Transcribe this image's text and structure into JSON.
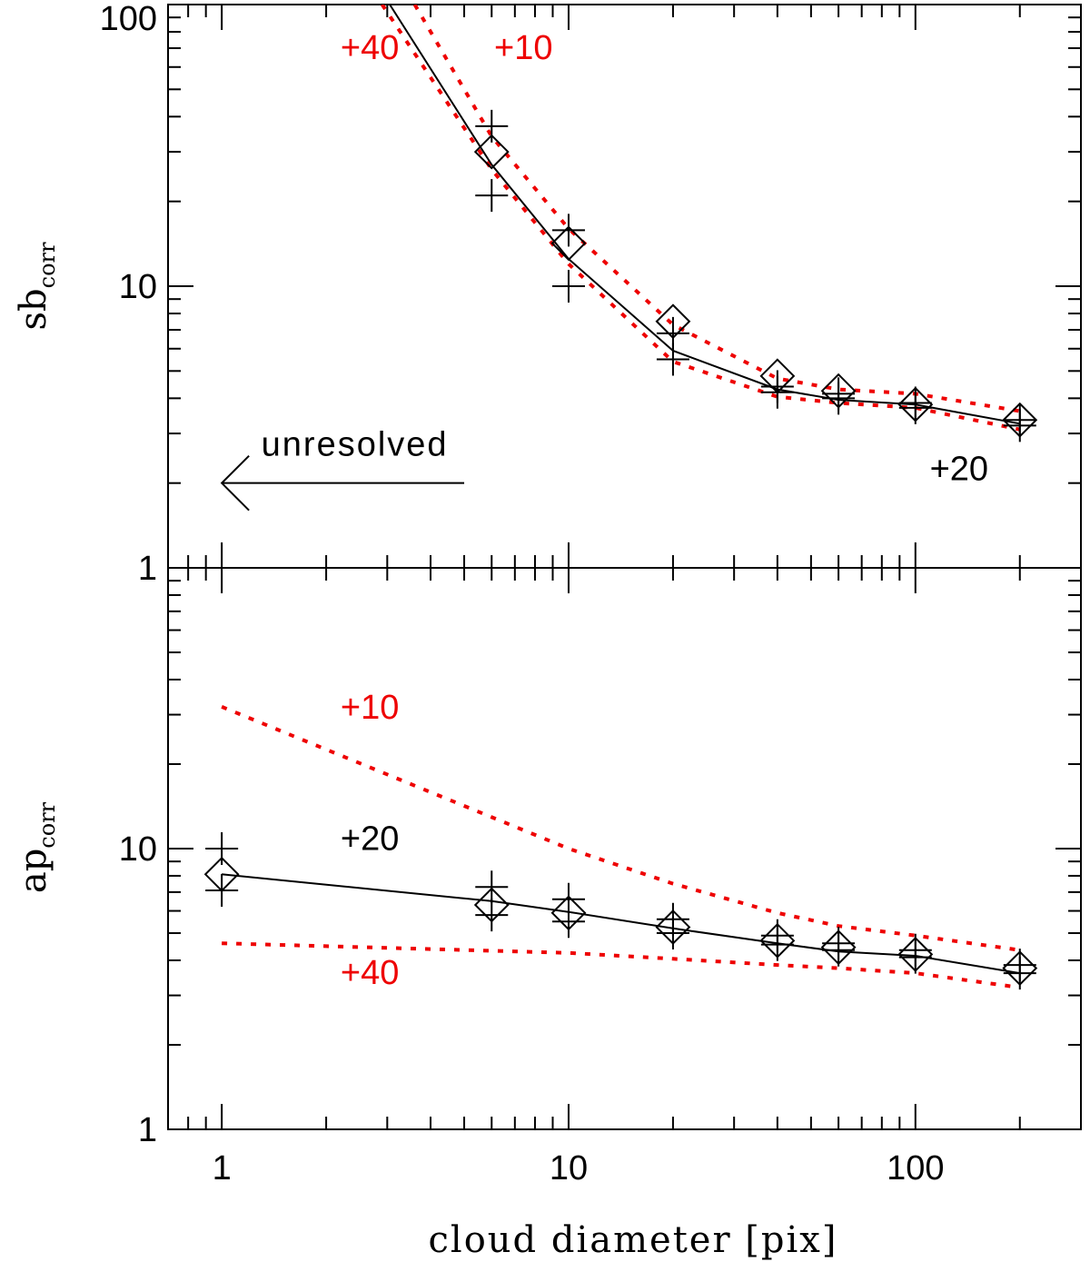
{
  "chart_data": [
    {
      "type": "line",
      "panel": "top",
      "ylabel_main": "sb",
      "ylabel_sub": "corr",
      "xscale": "log",
      "yscale": "log",
      "xlim": [
        0.7,
        300
      ],
      "ylim": [
        1,
        100
      ],
      "y_tick_labels": [
        "100",
        "10",
        "1"
      ],
      "y_ticks": [
        100,
        10,
        1
      ],
      "x": [
        6,
        10,
        20,
        40,
        60,
        100,
        200
      ],
      "diamonds": [
        30,
        14.2,
        7.5,
        4.8,
        4.25,
        3.8,
        3.35
      ],
      "plus_upper": [
        37,
        15.8,
        6.8,
        4.4,
        4.15,
        3.85,
        3.35
      ],
      "plus_lower": [
        21,
        10,
        5.5,
        4.2,
        4.0,
        3.7,
        3.2
      ],
      "series": [
        {
          "name": "+20",
          "style": "solid",
          "color": "#000000",
          "x": [
            3.05,
            6,
            10,
            20,
            40,
            60,
            100,
            200
          ],
          "values": [
            100,
            27,
            12.5,
            5.9,
            4.3,
            3.95,
            3.8,
            3.25
          ]
        },
        {
          "name": "+10",
          "style": "dotted",
          "color": "#ee0000",
          "x": [
            3.6,
            6,
            10,
            20,
            40,
            60,
            100,
            200
          ],
          "values": [
            100,
            34,
            16,
            7.3,
            4.7,
            4.3,
            4.15,
            3.6
          ]
        },
        {
          "name": "+40",
          "style": "dotted",
          "color": "#ee0000",
          "x": [
            2.9,
            6,
            10,
            20,
            40,
            60,
            100,
            200
          ],
          "values": [
            100,
            26,
            12,
            5.4,
            4.05,
            3.85,
            3.7,
            3.1
          ]
        }
      ],
      "annotations": [
        {
          "text": "+40",
          "color": "#ee0000",
          "x": 2.2,
          "y": 64
        },
        {
          "text": "+10",
          "color": "#ee0000",
          "x": 6.1,
          "y": 64
        },
        {
          "text": "+20",
          "color": "#000000",
          "x": 110,
          "y": 2.05
        },
        {
          "text": "unresolved",
          "color": "#000000",
          "x": 1.3,
          "y": 2.5
        }
      ],
      "arrow": {
        "from_x": 5,
        "to_x": 1,
        "y": 2
      }
    },
    {
      "type": "line",
      "panel": "bottom",
      "ylabel_main": "ap",
      "ylabel_sub": "corr",
      "xscale": "log",
      "yscale": "log",
      "xlim": [
        0.7,
        300
      ],
      "ylim": [
        1,
        100
      ],
      "y_tick_labels": [
        "10",
        "1"
      ],
      "y_ticks": [
        10,
        1
      ],
      "x": [
        1,
        6,
        10,
        20,
        40,
        60,
        100,
        200
      ],
      "diamonds": [
        8.1,
        6.3,
        5.9,
        5.25,
        4.7,
        4.45,
        4.2,
        3.75
      ],
      "plus_upper": [
        10,
        7.3,
        6.6,
        5.6,
        4.9,
        4.6,
        4.35,
        3.85
      ],
      "plus_lower": [
        7.1,
        5.8,
        5.5,
        5.0,
        4.55,
        4.35,
        4.1,
        3.6
      ],
      "series": [
        {
          "name": "+20",
          "style": "solid",
          "color": "#000000",
          "x": [
            1,
            6,
            10,
            20,
            40,
            60,
            100,
            200
          ],
          "values": [
            8.1,
            6.5,
            5.95,
            5.2,
            4.6,
            4.3,
            4.15,
            3.6
          ]
        },
        {
          "name": "+10",
          "style": "dotted",
          "color": "#ee0000",
          "x": [
            1,
            10,
            20,
            40,
            60,
            100,
            200
          ],
          "values": [
            32,
            10,
            7.5,
            5.9,
            5.3,
            4.9,
            4.35
          ]
        },
        {
          "name": "+40",
          "style": "dotted",
          "color": "#ee0000",
          "x": [
            1,
            10,
            20,
            40,
            60,
            100,
            200
          ],
          "values": [
            4.6,
            4.25,
            4.05,
            3.85,
            3.75,
            3.6,
            3.2
          ]
        }
      ],
      "annotations": [
        {
          "text": "+10",
          "color": "#ee0000",
          "x": 2.2,
          "y": 29
        },
        {
          "text": "+20",
          "color": "#000000",
          "x": 2.2,
          "y": 9.9
        },
        {
          "text": "+40",
          "color": "#ee0000",
          "x": 2.2,
          "y": 3.3
        }
      ]
    }
  ],
  "x_axis": {
    "label": "cloud diameter [pix]",
    "tick_labels": [
      "1",
      "10",
      "100"
    ],
    "ticks": [
      1,
      10,
      100
    ]
  }
}
